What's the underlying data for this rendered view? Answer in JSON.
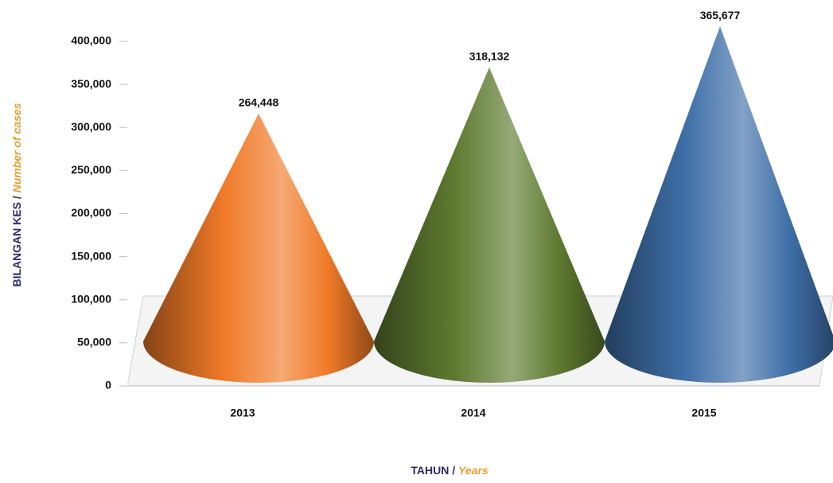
{
  "chart_data": {
    "type": "cone",
    "categories": [
      "2013",
      "2014",
      "2015"
    ],
    "series": [
      {
        "name": null,
        "colors": [
          "#f07a28",
          "#5e7a30",
          "#3e6fa8"
        ],
        "values": [
          264448,
          318132,
          365677
        ],
        "value_labels": [
          "264,448",
          "318,132",
          "365,677"
        ]
      }
    ],
    "ylim": [
      0,
      400000
    ],
    "yticks": [
      0,
      {
        "value": 50000,
        "label": "50,000"
      },
      {
        "value": 100000,
        "label": "100,000"
      },
      {
        "value": 150000,
        "label": "150,000"
      },
      {
        "value": 200000,
        "label": "200,000"
      },
      {
        "value": 250000,
        "label": "250,000"
      },
      {
        "value": 300000,
        "label": "300,000"
      },
      {
        "value": 350000,
        "label": "350,000"
      },
      {
        "value": 400000,
        "label": "400,000"
      }
    ],
    "ylabel": {
      "main": "BILANGAN KES /",
      "translation": "Number of cases"
    },
    "xlabel": {
      "main": "TAHUN /",
      "translation": "Years"
    }
  }
}
